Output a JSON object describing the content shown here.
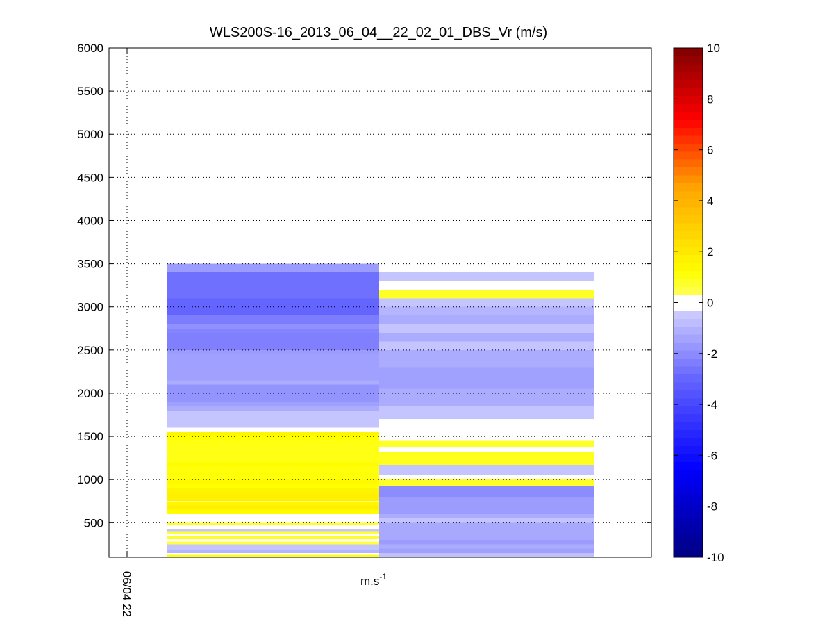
{
  "chart_data": {
    "type": "heatmap",
    "title": "WLS200S-16_2013_06_04__22_02_01_DBS_Vr (m/s)",
    "xlabel": "m.s",
    "xlabel_superscript": "-1",
    "ylabel": "",
    "ylim": [
      100,
      6000
    ],
    "yticks": [
      500,
      1000,
      1500,
      2000,
      2500,
      3000,
      3500,
      4000,
      4500,
      5000,
      5500,
      6000
    ],
    "xticks": [
      "06/04 22"
    ],
    "grid": true,
    "colorbar": {
      "range": [
        -10,
        10
      ],
      "ticks": [
        -10,
        -8,
        -6,
        -4,
        -2,
        0,
        2,
        4,
        6,
        8,
        10
      ],
      "colormap": "jet"
    },
    "columns": [
      {
        "column": 1,
        "top_altitude": 3500,
        "cells": [
          {
            "y": [
              3400,
              3500
            ],
            "v": -1.6
          },
          {
            "y": [
              3100,
              3400
            ],
            "v": -2.7
          },
          {
            "y": [
              2900,
              3100
            ],
            "v": -3.0
          },
          {
            "y": [
              2800,
              2900
            ],
            "v": -2.4
          },
          {
            "y": [
              2750,
              2800
            ],
            "v": -1.9
          },
          {
            "y": [
              2700,
              2750
            ],
            "v": -2.2
          },
          {
            "y": [
              2500,
              2700
            ],
            "v": -2.3
          },
          {
            "y": [
              2450,
              2500
            ],
            "v": -1.6
          },
          {
            "y": [
              2150,
              2450
            ],
            "v": -1.5
          },
          {
            "y": [
              2100,
              2150
            ],
            "v": -1.2
          },
          {
            "y": [
              1900,
              2100
            ],
            "v": -1.8
          },
          {
            "y": [
              1850,
              1900
            ],
            "v": -1.5
          },
          {
            "y": [
              1800,
              1850
            ],
            "v": -1.2
          },
          {
            "y": [
              1600,
              1800
            ],
            "v": -0.6
          },
          {
            "y": [
              1550,
              1600
            ],
            "v": 0.0
          },
          {
            "y": [
              1500,
              1550
            ],
            "v": 1.5
          },
          {
            "y": [
              1450,
              1500
            ],
            "v": 1.2
          },
          {
            "y": [
              1200,
              1450
            ],
            "v": 1.0
          },
          {
            "y": [
              1150,
              1200
            ],
            "v": 1.3
          },
          {
            "y": [
              1000,
              1150
            ],
            "v": 1.1
          },
          {
            "y": [
              950,
              1000
            ],
            "v": 1.4
          },
          {
            "y": [
              900,
              950
            ],
            "v": 1.2
          },
          {
            "y": [
              850,
              900
            ],
            "v": 1.6
          },
          {
            "y": [
              750,
              850
            ],
            "v": 1.8
          },
          {
            "y": [
              700,
              750
            ],
            "v": 1.5
          },
          {
            "y": [
              650,
              700
            ],
            "v": 1.8
          },
          {
            "y": [
              600,
              650
            ],
            "v": 1.3
          },
          {
            "y": [
              500,
              600
            ],
            "v": 0.0
          },
          {
            "y": [
              470,
              500
            ],
            "v": 0.8
          },
          {
            "y": [
              430,
              470
            ],
            "v": 0.0
          },
          {
            "y": [
              400,
              430
            ],
            "v": -0.6
          },
          {
            "y": [
              370,
              400
            ],
            "v": 0.7
          },
          {
            "y": [
              340,
              370
            ],
            "v": 0.0
          },
          {
            "y": [
              310,
              340
            ],
            "v": 0.8
          },
          {
            "y": [
              280,
              310
            ],
            "v": 0.0
          },
          {
            "y": [
              250,
              280
            ],
            "v": 0.6
          },
          {
            "y": [
              180,
              250
            ],
            "v": -0.6
          },
          {
            "y": [
              150,
              180
            ],
            "v": -1.0
          },
          {
            "y": [
              130,
              150
            ],
            "v": 0.0
          },
          {
            "y": [
              100,
              130
            ],
            "v": 1.0
          }
        ]
      },
      {
        "column": 2,
        "top_altitude": 3400,
        "cells": [
          {
            "y": [
              3300,
              3400
            ],
            "v": -0.6
          },
          {
            "y": [
              3200,
              3300
            ],
            "v": 0.0
          },
          {
            "y": [
              3100,
              3200
            ],
            "v": 0.8
          },
          {
            "y": [
              3000,
              3100
            ],
            "v": -0.6
          },
          {
            "y": [
              2900,
              3000
            ],
            "v": -1.0
          },
          {
            "y": [
              2800,
              2900
            ],
            "v": -1.2
          },
          {
            "y": [
              2700,
              2800
            ],
            "v": -0.6
          },
          {
            "y": [
              2600,
              2700
            ],
            "v": -1.2
          },
          {
            "y": [
              2500,
              2600
            ],
            "v": -0.6
          },
          {
            "y": [
              2300,
              2500
            ],
            "v": -1.2
          },
          {
            "y": [
              2050,
              2300
            ],
            "v": -1.5
          },
          {
            "y": [
              1850,
              2050
            ],
            "v": -1.2
          },
          {
            "y": [
              1700,
              1850
            ],
            "v": -0.6
          },
          {
            "y": [
              1450,
              1700
            ],
            "v": 0.0
          },
          {
            "y": [
              1380,
              1450
            ],
            "v": 0.8
          },
          {
            "y": [
              1320,
              1380
            ],
            "v": 0.0
          },
          {
            "y": [
              1170,
              1320
            ],
            "v": 0.9
          },
          {
            "y": [
              1050,
              1170
            ],
            "v": -0.6
          },
          {
            "y": [
              1000,
              1050
            ],
            "v": 0.0
          },
          {
            "y": [
              920,
              1000
            ],
            "v": 0.8
          },
          {
            "y": [
              800,
              920
            ],
            "v": -2.0
          },
          {
            "y": [
              600,
              800
            ],
            "v": -1.6
          },
          {
            "y": [
              550,
              600
            ],
            "v": -1.2
          },
          {
            "y": [
              500,
              550
            ],
            "v": -0.6
          },
          {
            "y": [
              300,
              500
            ],
            "v": -1.3
          },
          {
            "y": [
              250,
              300
            ],
            "v": -1.6
          },
          {
            "y": [
              200,
              250
            ],
            "v": -1.2
          },
          {
            "y": [
              150,
              200
            ],
            "v": -1.5
          },
          {
            "y": [
              100,
              150
            ],
            "v": -0.7
          }
        ]
      }
    ]
  }
}
